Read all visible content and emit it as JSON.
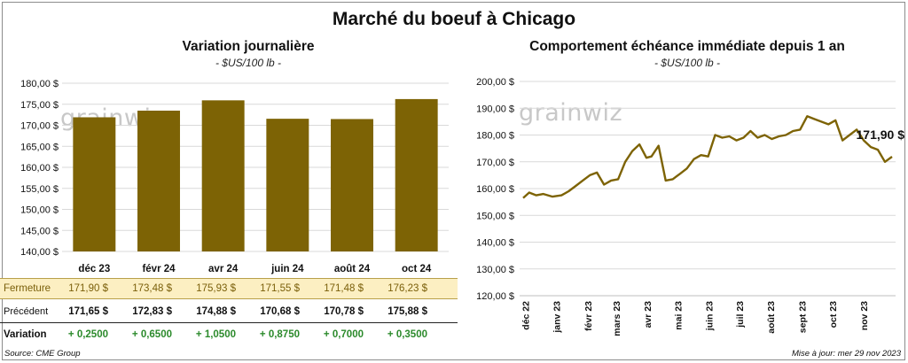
{
  "page": {
    "title": "Marché du boeuf à Chicago",
    "source": "Source: CME Group",
    "update": "Mise à jour: mer 29 nov 2023",
    "logo_text": "grainwiz"
  },
  "colors": {
    "bar": "#7d6305",
    "line": "#7d6305",
    "close_bg": "#fcefc2",
    "positive": "#2b8a2b"
  },
  "chart_data": [
    {
      "type": "bar",
      "title": "Variation  journalière",
      "subtitle": "- $US/100 lb -",
      "categories": [
        "déc 23",
        "févr 24",
        "avr 24",
        "juin 24",
        "août 24",
        "oct 24"
      ],
      "values": [
        171.9,
        173.48,
        175.93,
        171.55,
        171.48,
        176.23
      ],
      "ylim": [
        140,
        180
      ],
      "yticks": [
        "140,00 $",
        "145,00 $",
        "150,00 $",
        "155,00 $",
        "160,00 $",
        "165,00 $",
        "170,00 $",
        "175,00 $",
        "180,00 $"
      ],
      "grid": true,
      "table": {
        "rows": [
          {
            "label": "Fermeture",
            "cells": [
              "171,90  $",
              "173,48  $",
              "175,93  $",
              "171,55  $",
              "171,48  $",
              "176,23  $"
            ]
          },
          {
            "label": "Précédent",
            "cells": [
              "171,65  $",
              "172,83  $",
              "174,88  $",
              "170,68  $",
              "170,78  $",
              "175,88  $"
            ]
          },
          {
            "label": "Variation",
            "cells": [
              "+ 0,2500",
              "+ 0,6500",
              "+ 1,0500",
              "+ 0,8750",
              "+ 0,7000",
              "+ 0,3500"
            ]
          }
        ]
      }
    },
    {
      "type": "line",
      "title": "Comportement  échéance immédiate depuis 1 an",
      "subtitle": "- $US/100 lb -",
      "ylim": [
        120,
        200
      ],
      "yticks": [
        "120,00 $",
        "130,00 $",
        "140,00 $",
        "150,00 $",
        "160,00 $",
        "170,00 $",
        "180,00 $",
        "190,00 $",
        "200,00 $"
      ],
      "x_ticks": [
        "déc 22",
        "janv 23",
        "févr 23",
        "mars 23",
        "avr 23",
        "mai 23",
        "juin 23",
        "juil 23",
        "août 23",
        "sept 23",
        "oct 23",
        "nov 23"
      ],
      "last_value_label": "171,90 $",
      "grid": true,
      "series": [
        {
          "x": [
            "2022-11-29",
            "2022-12-05",
            "2022-12-12",
            "2022-12-19",
            "2022-12-28",
            "2023-01-06",
            "2023-01-13",
            "2023-01-20",
            "2023-01-27",
            "2023-02-03",
            "2023-02-10",
            "2023-02-17",
            "2023-02-24",
            "2023-03-03",
            "2023-03-10",
            "2023-03-17",
            "2023-03-24",
            "2023-03-31",
            "2023-04-05",
            "2023-04-12",
            "2023-04-19",
            "2023-04-26",
            "2023-05-03",
            "2023-05-10",
            "2023-05-17",
            "2023-05-24",
            "2023-05-31",
            "2023-06-07",
            "2023-06-14",
            "2023-06-21",
            "2023-06-28",
            "2023-07-05",
            "2023-07-12",
            "2023-07-19",
            "2023-07-26",
            "2023-08-02",
            "2023-08-09",
            "2023-08-16",
            "2023-08-23",
            "2023-08-30",
            "2023-09-06",
            "2023-09-13",
            "2023-09-20",
            "2023-09-27",
            "2023-10-04",
            "2023-10-11",
            "2023-10-18",
            "2023-10-25",
            "2023-11-01",
            "2023-11-08",
            "2023-11-15",
            "2023-11-22",
            "2023-11-29"
          ],
          "values": [
            156.5,
            158.5,
            157.5,
            158.0,
            157.0,
            157.5,
            159.0,
            161.0,
            163.0,
            165.0,
            166.0,
            161.5,
            163.0,
            163.5,
            170.0,
            174.0,
            176.5,
            171.5,
            172.0,
            176.0,
            163.0,
            163.5,
            165.5,
            167.5,
            171.0,
            172.5,
            172.0,
            180.0,
            179.0,
            179.5,
            178.0,
            179.0,
            181.5,
            179.0,
            180.0,
            178.5,
            179.5,
            180.0,
            181.5,
            182.0,
            187.0,
            186.0,
            185.0,
            184.0,
            185.5,
            178.0,
            180.0,
            182.0,
            178.0,
            175.5,
            174.5,
            170.0,
            171.9
          ]
        }
      ]
    }
  ]
}
